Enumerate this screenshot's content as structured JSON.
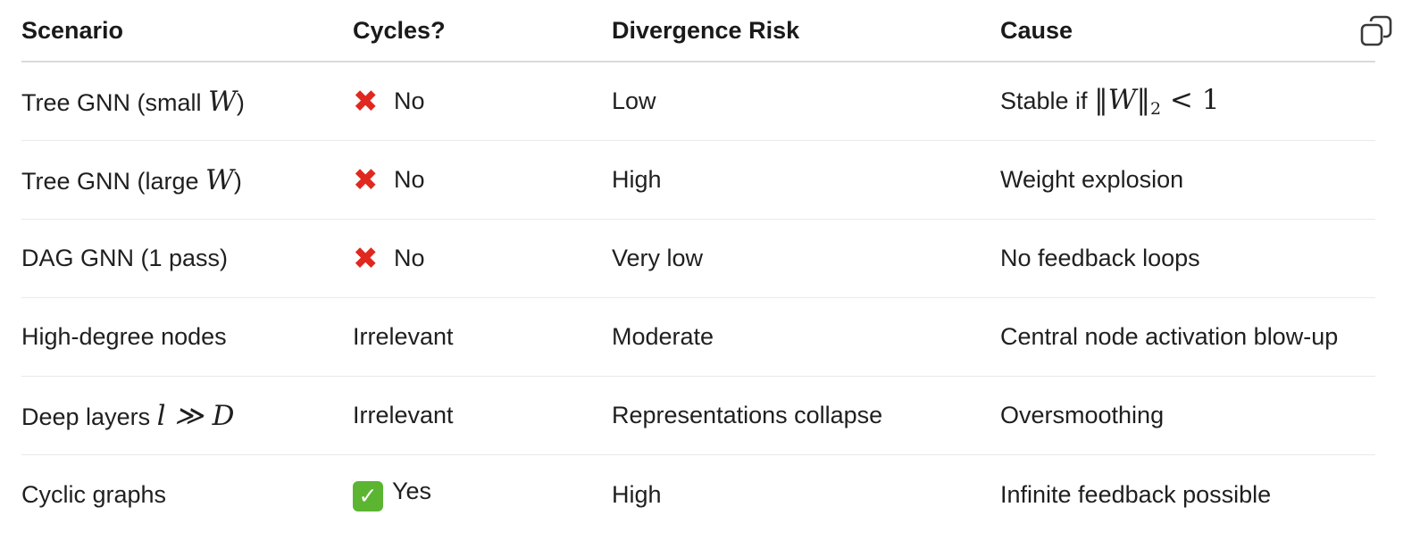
{
  "table": {
    "headers": [
      "Scenario",
      "Cycles?",
      "Divergence Risk",
      "Cause"
    ],
    "rows": [
      {
        "scenario_text": "Tree GNN (small ",
        "scenario_math": "W",
        "scenario_suffix": ")",
        "cycles_icon": "cross-mark-icon",
        "cycles": "No",
        "risk": "Low",
        "cause_text": "Stable if ",
        "cause_math_norm_open": "‖",
        "cause_math_var": "W",
        "cause_math_norm_close": "‖",
        "cause_math_sub": "2",
        "cause_math_rel": " < 1"
      },
      {
        "scenario_text": "Tree GNN (large ",
        "scenario_math": "W",
        "scenario_suffix": ")",
        "cycles_icon": "cross-mark-icon",
        "cycles": "No",
        "risk": "High",
        "cause": "Weight explosion"
      },
      {
        "scenario": "DAG GNN (1 pass)",
        "cycles_icon": "cross-mark-icon",
        "cycles": "No",
        "risk": "Very low",
        "cause": "No feedback loops"
      },
      {
        "scenario": "High-degree nodes",
        "cycles": "Irrelevant",
        "risk": "Moderate",
        "cause": "Central node activation blow-up"
      },
      {
        "scenario_text": "Deep layers ",
        "scenario_math": "l ≫ D",
        "cycles": "Irrelevant",
        "risk": "Representations collapse",
        "cause": "Oversmoothing"
      },
      {
        "scenario": "Cyclic graphs",
        "cycles_icon": "check-mark-icon",
        "cycles": "Yes",
        "risk": "High",
        "cause": "Infinite feedback possible"
      }
    ]
  },
  "toolbar": {
    "copy_icon": "copy-icon"
  },
  "colors": {
    "cross": "#e0281f",
    "check": "#5cb531",
    "divider": "#e9e9e9"
  }
}
